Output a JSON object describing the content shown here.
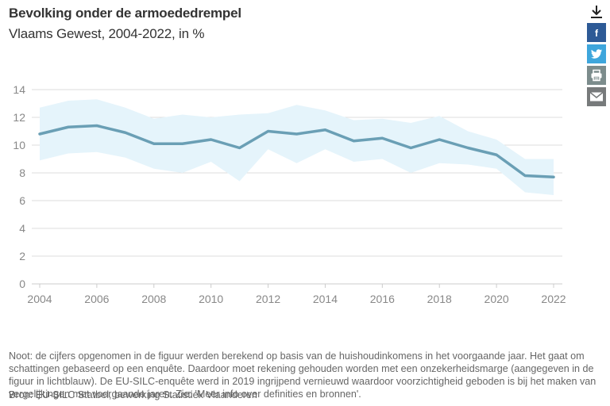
{
  "header": {
    "title": "Bevolking onder de armoededrempel",
    "subtitle": "Vlaams Gewest, 2004-2022, in %"
  },
  "share": {
    "icons": [
      "download-icon",
      "facebook-icon",
      "twitter-icon",
      "print-icon",
      "mail-icon"
    ],
    "colors": {
      "facebook": "#2d5a96",
      "twitter": "#3ea6dc",
      "print": "#7c8c8c",
      "mail": "#777a7b"
    }
  },
  "colors": {
    "line": "#6a9fb5",
    "band": "#e5f4fb",
    "grid": "#dddddd",
    "axis_text": "#888888"
  },
  "chart_data": {
    "type": "line",
    "title": "Bevolking onder de armoededrempel",
    "subtitle": "Vlaams Gewest, 2004-2022, in %",
    "xlabel": "",
    "ylabel": "",
    "x": [
      2004,
      2005,
      2006,
      2007,
      2008,
      2009,
      2010,
      2011,
      2012,
      2013,
      2014,
      2015,
      2016,
      2017,
      2018,
      2019,
      2020,
      2021,
      2022
    ],
    "series": [
      {
        "name": "Bevolking onder de armoededrempel",
        "values": [
          10.8,
          11.3,
          11.4,
          10.9,
          10.1,
          10.1,
          10.4,
          9.8,
          11.0,
          10.8,
          11.1,
          10.3,
          10.5,
          9.8,
          10.4,
          9.8,
          9.3,
          7.8,
          7.7
        ]
      }
    ],
    "band": {
      "name": "onzekerheidsmarge",
      "upper": [
        12.7,
        13.2,
        13.3,
        12.7,
        11.9,
        12.2,
        12.0,
        12.2,
        12.3,
        12.9,
        12.5,
        11.8,
        11.9,
        11.6,
        12.1,
        11.0,
        10.4,
        9.0,
        9.0
      ],
      "lower": [
        8.9,
        9.4,
        9.5,
        9.1,
        8.3,
        8.0,
        8.8,
        7.4,
        9.7,
        8.7,
        9.7,
        8.8,
        9.0,
        8.0,
        8.7,
        8.6,
        8.3,
        6.6,
        6.4
      ]
    },
    "ylim": [
      0,
      14
    ],
    "yticks": [
      0,
      2,
      4,
      6,
      8,
      10,
      12,
      14
    ],
    "xticks": [
      2004,
      2006,
      2008,
      2010,
      2012,
      2014,
      2016,
      2018,
      2020,
      2022
    ],
    "grid": true,
    "legend": "none"
  },
  "footer": {
    "note": "Noot: de cijfers opgenomen in de figuur werden berekend op basis van de huishoudinkomens in het voorgaande jaar. Het gaat om schattingen gebaseerd op een enquête. Daardoor moet rekening gehouden worden met een onzekerheidsmarge (aangegeven in de figuur in lichtblauw). De EU-SILC-enquête werd in 2019 ingrijpend vernieuwd waardoor voorzichtigheid geboden is bij het maken van vergelijkingen met voorgaande jaren. Zie: 'Meer info over definities en bronnen'.",
    "source": "Bron: EU-SILC Statbel, bewerking Statistiek Vlaanderen"
  }
}
